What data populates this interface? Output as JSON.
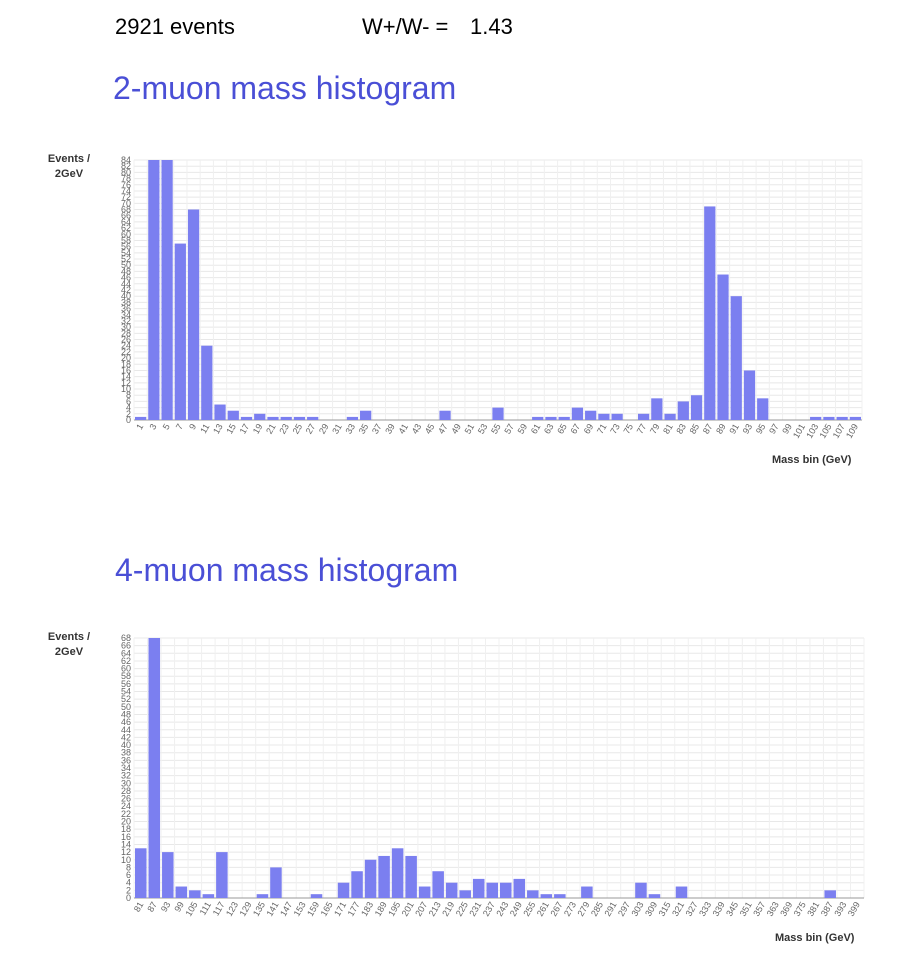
{
  "header": {
    "events_text": "2921 events",
    "ratio_label": "W+/W- =",
    "ratio_value": "1.43"
  },
  "colors": {
    "bar": "#7b7ff0",
    "title": "#4a4fd6",
    "grid": "#e8e8e8"
  },
  "chart_data": [
    {
      "type": "bar",
      "title": "2-muon mass histogram",
      "ylabel": "Events / 2GeV",
      "xlabel": "Mass bin (GeV)",
      "categories": [
        1,
        3,
        5,
        7,
        9,
        11,
        13,
        15,
        17,
        19,
        21,
        23,
        25,
        27,
        29,
        31,
        33,
        35,
        37,
        39,
        41,
        43,
        45,
        47,
        49,
        51,
        53,
        55,
        57,
        59,
        61,
        63,
        65,
        67,
        69,
        71,
        73,
        75,
        77,
        79,
        81,
        83,
        85,
        87,
        89,
        91,
        93,
        95,
        97,
        99,
        101,
        103,
        105,
        107,
        109
      ],
      "x_tick_labels": [
        "1",
        "3",
        "5",
        "7",
        "9",
        "11",
        "13",
        "15",
        "17",
        "19",
        "21",
        "23",
        "25",
        "27",
        "29",
        "31",
        "33",
        "35",
        "37",
        "39",
        "41",
        "43",
        "45",
        "47",
        "49",
        "51",
        "53",
        "55",
        "57",
        "59",
        "61",
        "63",
        "65",
        "67",
        "69",
        "71",
        "73",
        "75",
        "77",
        "79",
        "81",
        "83",
        "85",
        "87",
        "89",
        "91",
        "93",
        "95",
        "97",
        "99",
        "101",
        "103",
        "105",
        "107",
        "109"
      ],
      "values": [
        1,
        84,
        84,
        57,
        68,
        24,
        5,
        3,
        1,
        2,
        1,
        1,
        1,
        1,
        0,
        0,
        1,
        3,
        0,
        0,
        0,
        0,
        0,
        3,
        0,
        0,
        0,
        4,
        0,
        0,
        1,
        1,
        1,
        4,
        3,
        2,
        2,
        0,
        2,
        7,
        2,
        6,
        8,
        69,
        47,
        40,
        16,
        7,
        0,
        0,
        0,
        1,
        1,
        1,
        1
      ],
      "ylim": [
        0,
        84
      ],
      "y_ticks": [
        0,
        2,
        4,
        6,
        8,
        10,
        12,
        14,
        16,
        18,
        20,
        22,
        24,
        26,
        28,
        30,
        32,
        34,
        36,
        38,
        40,
        42,
        44,
        46,
        48,
        50,
        52,
        54,
        56,
        58,
        60,
        62,
        64,
        66,
        68,
        70,
        72,
        74,
        76,
        78,
        80,
        82,
        84
      ],
      "grid": true
    },
    {
      "type": "bar",
      "title": "4-muon mass histogram",
      "ylabel": "Events / 2GeV",
      "xlabel": "Mass bin (GeV)",
      "x_tick_labels": [
        "81",
        "87",
        "93",
        "99",
        "105",
        "111",
        "117",
        "123",
        "129",
        "135",
        "141",
        "147",
        "153",
        "159",
        "165",
        "171",
        "177",
        "183",
        "189",
        "195",
        "201",
        "207",
        "213",
        "219",
        "225",
        "231",
        "237",
        "243",
        "249",
        "255",
        "261",
        "267",
        "273",
        "279",
        "285",
        "291",
        "297",
        "303",
        "309",
        "315",
        "321",
        "327",
        "333",
        "339",
        "345",
        "351",
        "357",
        "363",
        "369",
        "375",
        "381",
        "387",
        "393",
        "399"
      ],
      "values": [
        13,
        68,
        12,
        3,
        2,
        1,
        12,
        0,
        0,
        1,
        8,
        0,
        0,
        1,
        0,
        4,
        7,
        10,
        11,
        13,
        11,
        3,
        7,
        4,
        2,
        5,
        4,
        4,
        5,
        2,
        1,
        1,
        0,
        3,
        0,
        0,
        0,
        4,
        1,
        0,
        3,
        0,
        0,
        0,
        0,
        0,
        0,
        0,
        0,
        0,
        0,
        2,
        0,
        0
      ],
      "ylim": [
        0,
        68
      ],
      "y_ticks": [
        0,
        2,
        4,
        6,
        8,
        10,
        12,
        14,
        16,
        18,
        20,
        22,
        24,
        26,
        28,
        30,
        32,
        34,
        36,
        38,
        40,
        42,
        44,
        46,
        48,
        50,
        52,
        54,
        56,
        58,
        60,
        62,
        64,
        66,
        68
      ],
      "grid": true
    }
  ]
}
